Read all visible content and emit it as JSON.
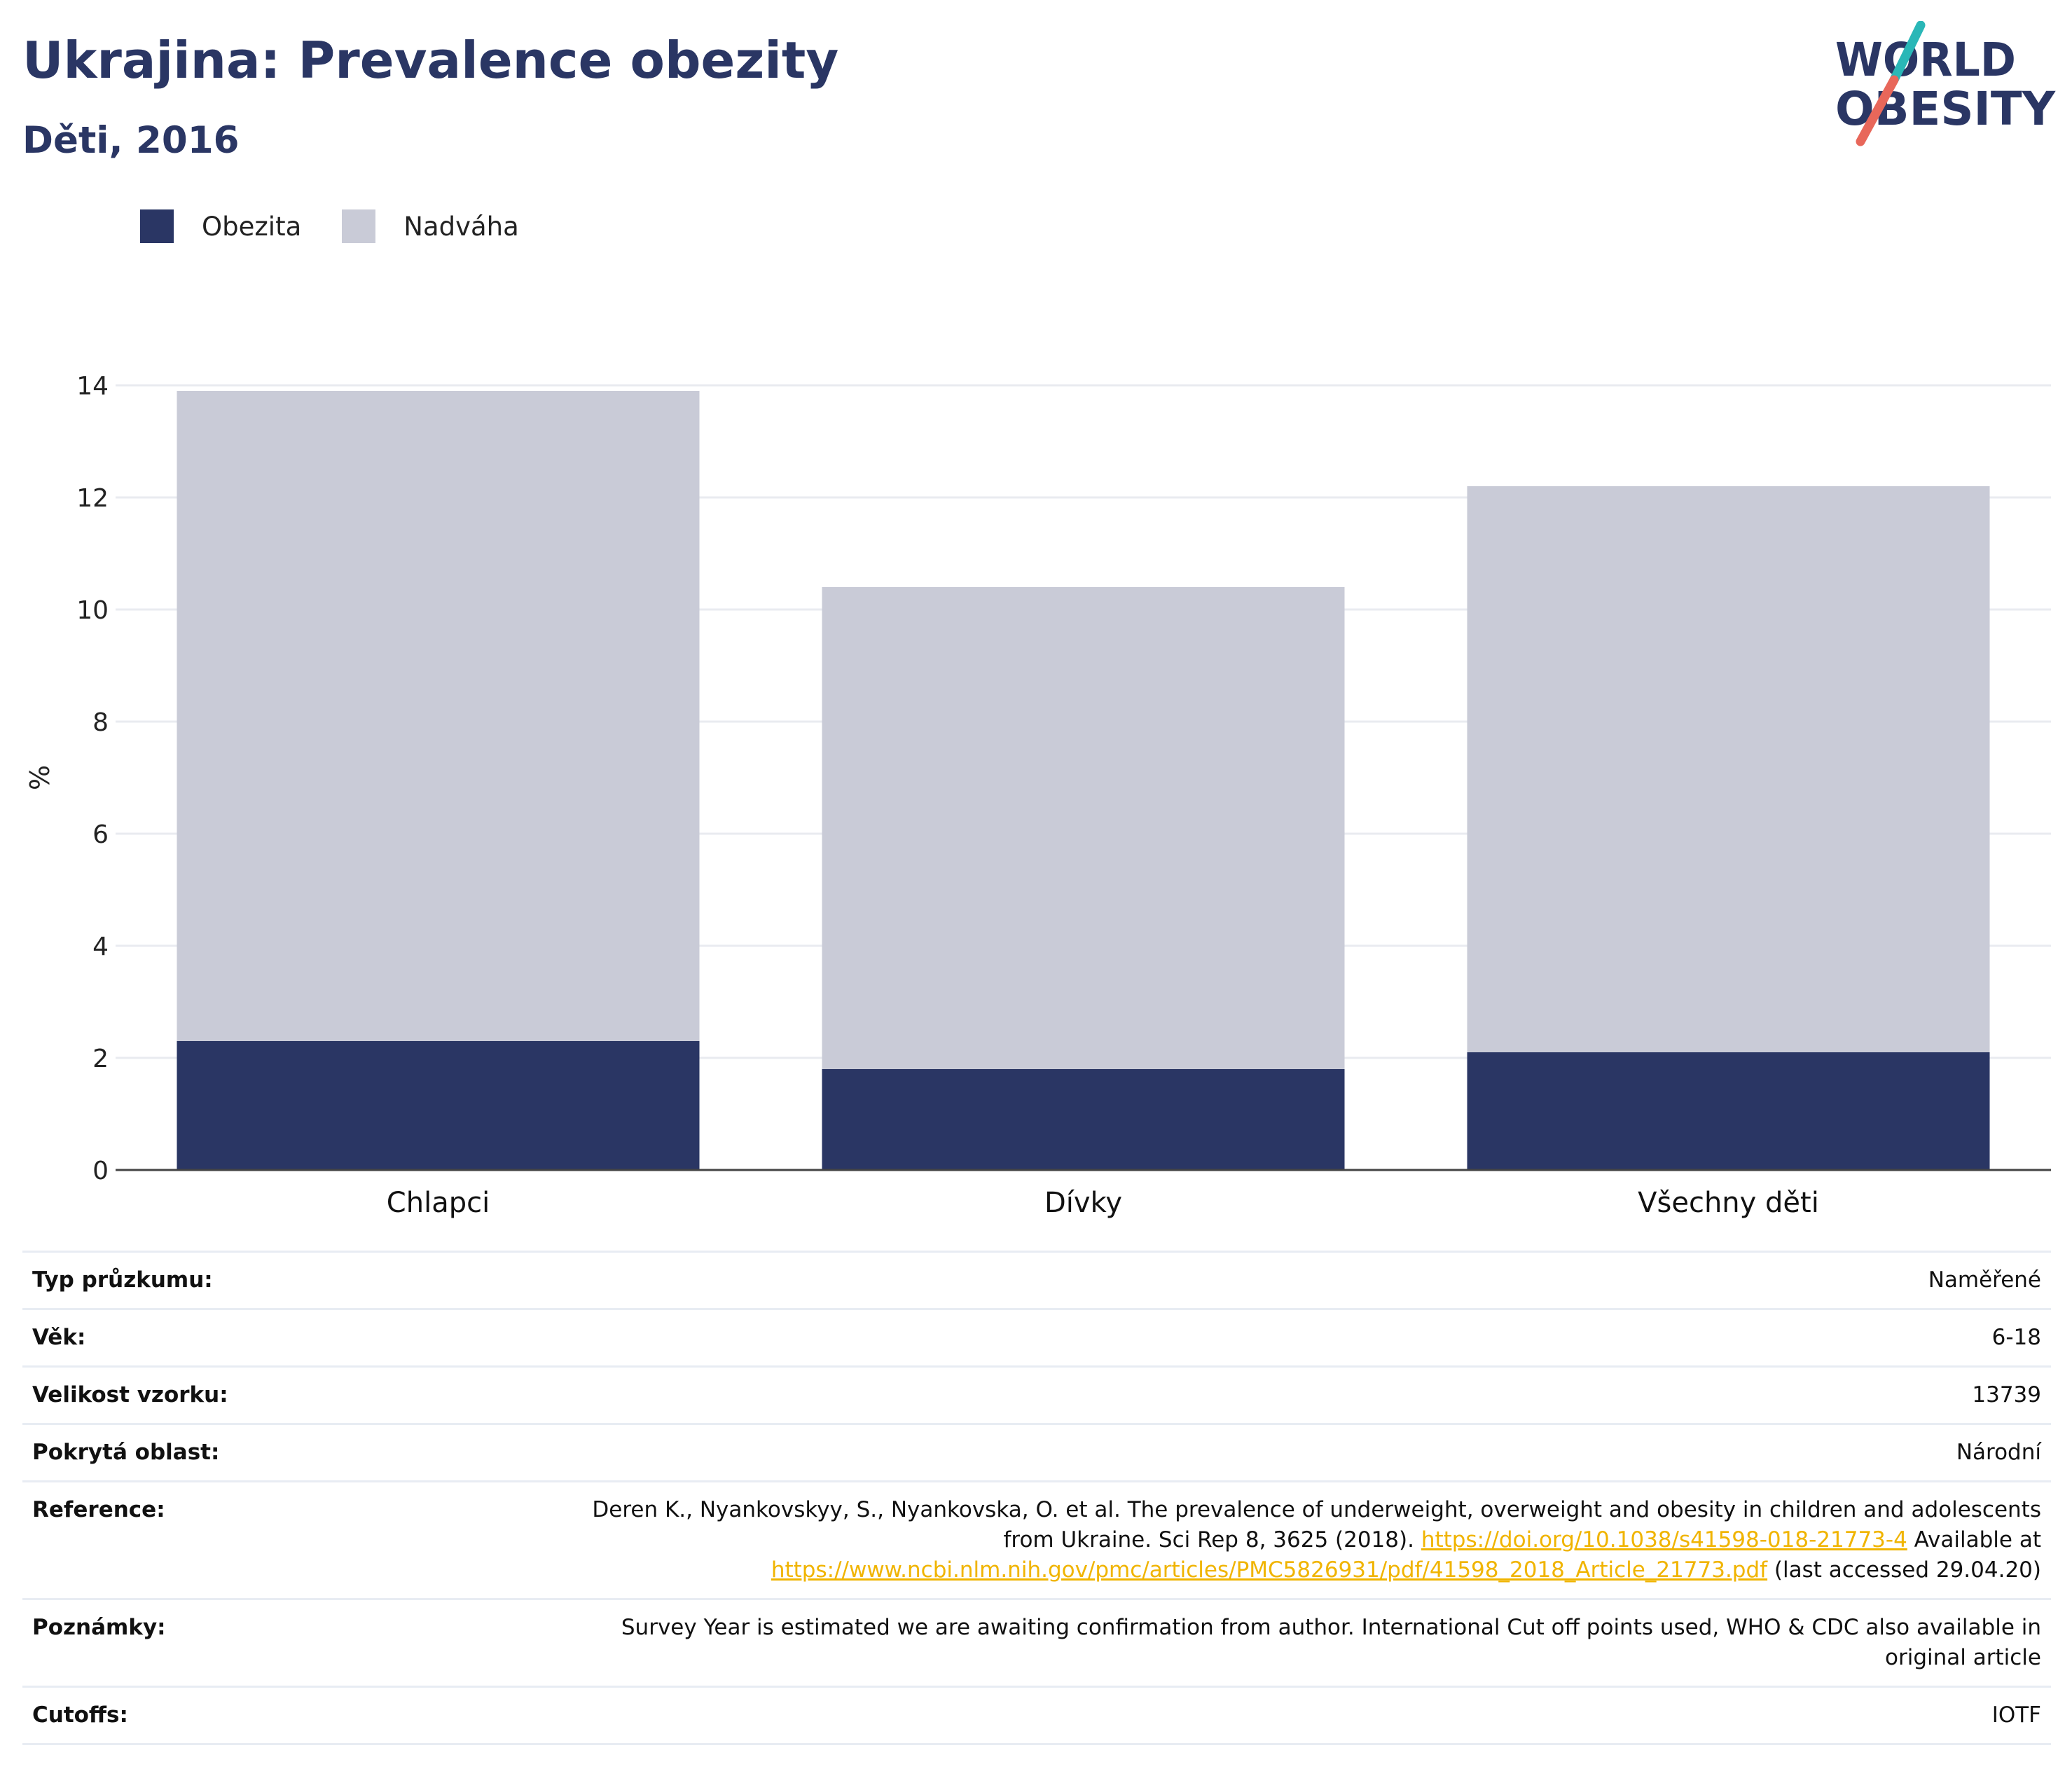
{
  "header": {
    "title": "Ukrajina: Prevalence obezity",
    "subtitle": "Děti, 2016"
  },
  "logo": {
    "line1": "WORLD",
    "line2": "OBESITY",
    "colors": {
      "text": "#2a3664",
      "slash_top": "#2ab7b7",
      "slash_bottom": "#e8675a"
    }
  },
  "legend": {
    "items": [
      {
        "label": "Obezita",
        "color": "#2a3664"
      },
      {
        "label": "Nadváha",
        "color": "#c9cbd7"
      }
    ]
  },
  "chart_data": {
    "type": "bar",
    "stacked": true,
    "categories": [
      "Chlapci",
      "Dívky",
      "Všechny děti"
    ],
    "series": [
      {
        "name": "Obezita",
        "values": [
          2.3,
          1.8,
          2.1
        ],
        "color": "#2a3664"
      },
      {
        "name": "Nadváha",
        "values": [
          11.6,
          8.6,
          10.1
        ],
        "color": "#c9cbd7"
      }
    ],
    "ylabel": "%",
    "ylim": [
      0,
      14
    ],
    "yticks": [
      0,
      2,
      4,
      6,
      8,
      10,
      12,
      14
    ],
    "grid": true,
    "legend_position": "top-left"
  },
  "info": {
    "rows": [
      {
        "label": "Typ průzkumu:",
        "value": "Naměřené"
      },
      {
        "label": "Věk:",
        "value": "6-18"
      },
      {
        "label": "Velikost vzorku:",
        "value": "13739"
      },
      {
        "label": "Pokrytá oblast:",
        "value": "Národní"
      }
    ],
    "reference": {
      "label": "Reference:",
      "text1": "Deren K., Nyankovskyy, S., Nyankovska, O. et al. The prevalence of underweight, overweight and obesity in children and adolescents from Ukraine. Sci Rep 8, 3625 (2018). ",
      "link1": "https://doi.org/10.1038/s41598-018-21773-4",
      "text2": " Available at ",
      "link2": "https://www.ncbi.nlm.nih.gov/pmc/articles/PMC5826931/pdf/41598_2018_Article_21773.pdf",
      "text3": " (last accessed 29.04.20)"
    },
    "notes": {
      "label": "Poznámky:",
      "value": "Survey Year is estimated we are awaiting confirmation from author. International Cut off points used, WHO & CDC also available in original article"
    },
    "cutoffs": {
      "label": "Cutoffs:",
      "value": "IOTF"
    }
  }
}
